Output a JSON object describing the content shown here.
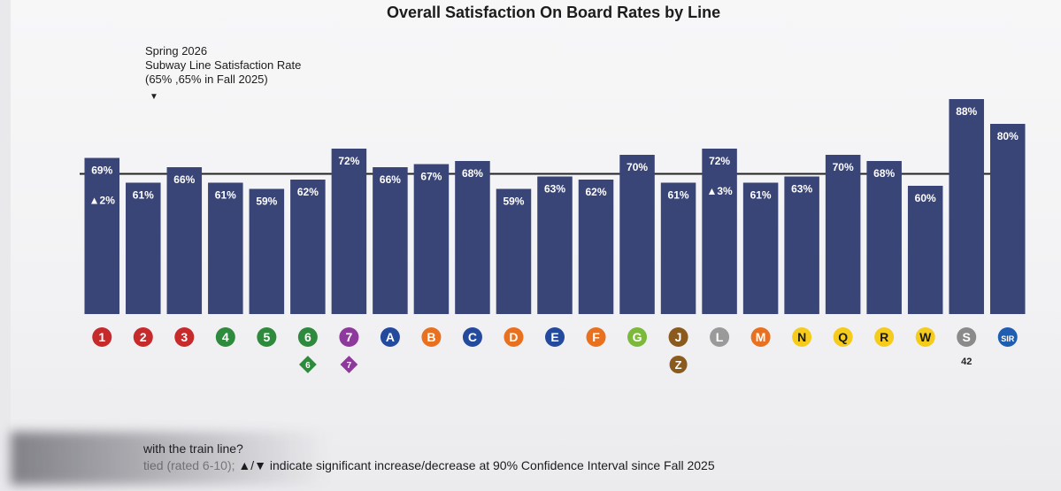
{
  "chart_data": {
    "type": "bar",
    "title": "Overall Satisfaction On Board Rates by Line",
    "categories": [
      "1",
      "2",
      "3",
      "4",
      "5",
      "6",
      "7",
      "A",
      "B",
      "C",
      "D",
      "E",
      "F",
      "G",
      "J",
      "L",
      "M",
      "N",
      "Q",
      "R",
      "W",
      "S",
      "SIR"
    ],
    "values": [
      69,
      61,
      66,
      61,
      59,
      62,
      72,
      66,
      67,
      68,
      59,
      63,
      62,
      70,
      61,
      72,
      61,
      63,
      70,
      68,
      60,
      88,
      80
    ],
    "value_labels": [
      "69%",
      "61%",
      "66%",
      "61%",
      "59%",
      "62%",
      "72%",
      "66%",
      "67%",
      "68%",
      "59%",
      "63%",
      "62%",
      "70%",
      "61%",
      "72%",
      "61%",
      "63%",
      "70%",
      "68%",
      "60%",
      "88%",
      "80%"
    ],
    "change_markers": [
      {
        "index": 0,
        "text": "▲2%"
      },
      {
        "index": 15,
        "text": "▲3%"
      }
    ],
    "reference_line": {
      "value": 65,
      "label_lines": [
        "Spring 2026",
        "Subway Line Satisfaction Rate",
        "(65% ,65% in Fall 2025)"
      ],
      "marker": "▼"
    },
    "ylim": [
      0,
      100
    ],
    "bar_color": "#3a4577",
    "line_bullets": [
      {
        "label": "1",
        "color": "#c62a2a",
        "text_color": "#ffffff"
      },
      {
        "label": "2",
        "color": "#c62a2a",
        "text_color": "#ffffff"
      },
      {
        "label": "3",
        "color": "#c62a2a",
        "text_color": "#ffffff"
      },
      {
        "label": "4",
        "color": "#2e8a3c",
        "text_color": "#ffffff"
      },
      {
        "label": "5",
        "color": "#2e8a3c",
        "text_color": "#ffffff"
      },
      {
        "label": "6",
        "color": "#2e8a3c",
        "text_color": "#ffffff"
      },
      {
        "label": "7",
        "color": "#8e3a9c",
        "text_color": "#ffffff"
      },
      {
        "label": "A",
        "color": "#234a9c",
        "text_color": "#ffffff"
      },
      {
        "label": "B",
        "color": "#e8701e",
        "text_color": "#ffffff"
      },
      {
        "label": "C",
        "color": "#234a9c",
        "text_color": "#ffffff"
      },
      {
        "label": "D",
        "color": "#e8701e",
        "text_color": "#ffffff"
      },
      {
        "label": "E",
        "color": "#234a9c",
        "text_color": "#ffffff"
      },
      {
        "label": "F",
        "color": "#e8701e",
        "text_color": "#ffffff"
      },
      {
        "label": "G",
        "color": "#7cb93a",
        "text_color": "#ffffff"
      },
      {
        "label": "J",
        "color": "#8a5a1e",
        "text_color": "#ffffff"
      },
      {
        "label": "L",
        "color": "#9a9a9a",
        "text_color": "#ffffff"
      },
      {
        "label": "M",
        "color": "#e8701e",
        "text_color": "#ffffff"
      },
      {
        "label": "N",
        "color": "#f5cc1c",
        "text_color": "#1a1a1a"
      },
      {
        "label": "Q",
        "color": "#f5cc1c",
        "text_color": "#1a1a1a"
      },
      {
        "label": "R",
        "color": "#f5cc1c",
        "text_color": "#1a1a1a"
      },
      {
        "label": "W",
        "color": "#f5cc1c",
        "text_color": "#1a1a1a"
      },
      {
        "label": "S",
        "color": "#8a8a8a",
        "text_color": "#ffffff"
      },
      {
        "label": "SIR",
        "color": "#1f5db0",
        "text_color": "#ffffff"
      }
    ],
    "sub_bullets": [
      {
        "index": 5,
        "label": "6",
        "shape": "diamond",
        "color": "#2e8a3c"
      },
      {
        "index": 6,
        "label": "7",
        "shape": "diamond",
        "color": "#8e3a9c"
      },
      {
        "index": 14,
        "label": "Z",
        "shape": "circle",
        "color": "#8a5a1e"
      },
      {
        "index": 21,
        "label": "42",
        "shape": "text",
        "color": "#222222"
      }
    ]
  },
  "footnote": {
    "line1": "with the train line?",
    "line2_faded": "tied (rated 6-10);",
    "line2": " ▲/▼ indicate significant increase/decrease at 90% Confidence Interval since Fall 2025"
  }
}
